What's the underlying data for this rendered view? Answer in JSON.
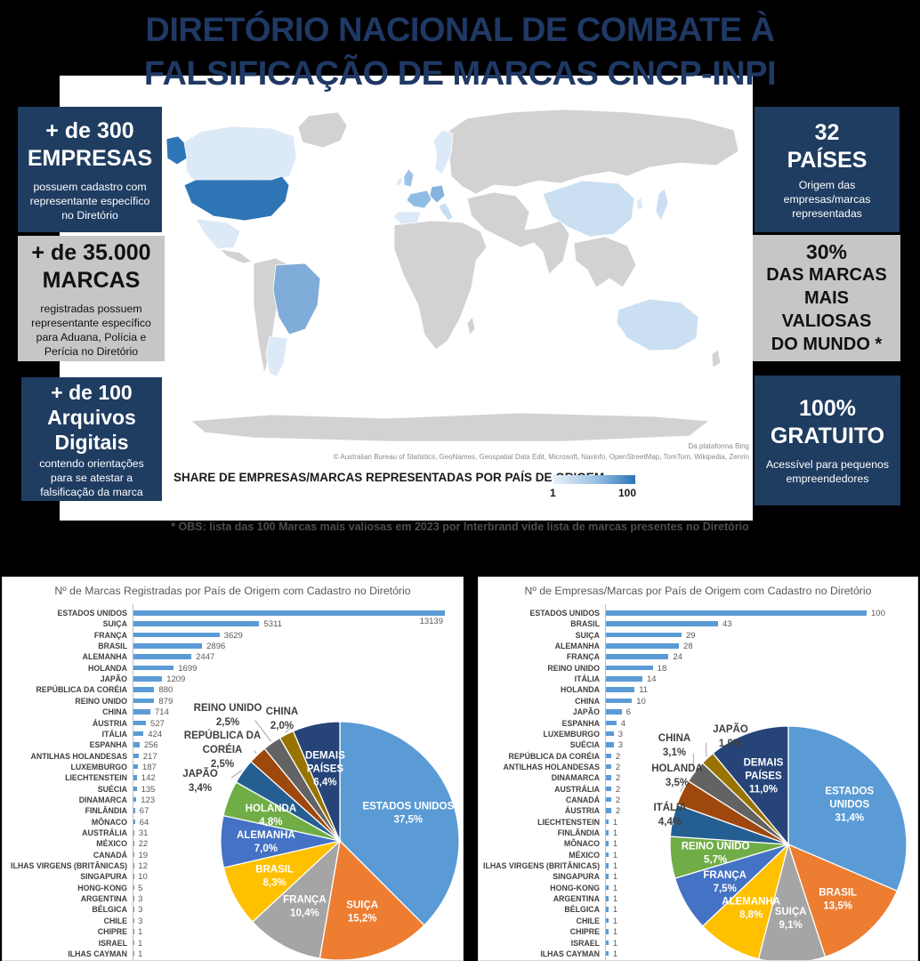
{
  "title": {
    "line1": "DIRETÓRIO NACIONAL DE COMBATE À",
    "line2": "FALSIFICAÇÃO DE MARCAS CNCP-INPI"
  },
  "stat_boxes": {
    "left": [
      {
        "lines": [
          "+ de 300",
          "EMPRESAS"
        ],
        "body": "possuem cadastro com representante específico no Diretório"
      },
      {
        "lines": [
          "+ de 35.000",
          "MARCAS"
        ],
        "body": "registradas possuem representante específico para Aduana, Polícia e Perícia no Diretório"
      },
      {
        "lines": [
          "+ de 100",
          "Arquivos",
          "Digitais"
        ],
        "body": "contendo orientações para se atestar a falsificação da marca"
      }
    ],
    "right": [
      {
        "lines": [
          "32",
          "PAÍSES"
        ],
        "body": "Origem das empresas/marcas representadas"
      },
      {
        "lines": [
          "30%",
          "DAS MARCAS",
          "MAIS VALIOSAS",
          "DO MUNDO *"
        ],
        "body": ""
      },
      {
        "lines": [
          "100%",
          "GRATUITO"
        ],
        "body": "Acessível para pequenos empreendedores"
      }
    ]
  },
  "map": {
    "attribution_line1": "Da plataforma Bing",
    "attribution_line2": "© Australian Bureau of Statistics, GeoNames, Geospatial Data Edit, Microsoft, Navinfo, OpenStreetMap, TomTom, Wikipedia, Zenrin",
    "legend_label": "SHARE DE EMPRESAS/MARCAS REPRESENTADAS POR PAÍS DE ORIGEM",
    "legend_min": "1",
    "legend_max": "100"
  },
  "footnote": "* OBS: lista das 100 Marcas mais valiosas em 2023 por Interbrand vide lista de marcas presentes no Diretório",
  "colors": {
    "navy_box": "#1F3C61",
    "gray_box": "#C6C6C6",
    "title_navy": "#1F3864",
    "bar_blue": "#5B9BD5",
    "map_dark_blue": "#2E75B6",
    "map_medium_blue": "#7FACD8",
    "map_light_blue": "#CBDFF2",
    "map_pale_blue": "#DCE9F6",
    "map_gray_land": "#D2D2D2"
  },
  "chart_data": [
    {
      "type": "bar",
      "title": "Nº de Marcas Registradas por País de Origem com Cadastro no Diretório",
      "bar_color": "#5B9BD5",
      "categories": [
        "ESTADOS UNIDOS",
        "SUIÇA",
        "FRANÇA",
        "BRASIL",
        "ALEMANHA",
        "HOLANDA",
        "JAPÃO",
        "REPÚBLICA DA CORÉIA",
        "REINO UNIDO",
        "CHINA",
        "ÁUSTRIA",
        "ITÁLIA",
        "ESPANHA",
        "ANTILHAS HOLANDESAS",
        "LUXEMBURGO",
        "LIECHTENSTEIN",
        "SUÉCIA",
        "DINAMARCA",
        "FINLÂNDIA",
        "MÔNACO",
        "AUSTRÁLIA",
        "MÉXICO",
        "CANADÁ",
        "ILHAS VIRGENS (BRITÂNICAS)",
        "SINGAPURA",
        "HONG-KONG",
        "ARGENTINA",
        "BÉLGICA",
        "CHILE",
        "CHIPRE",
        "ISRAEL",
        "ILHAS CAYMAN"
      ],
      "values": [
        13139,
        5311,
        3629,
        2896,
        2447,
        1699,
        1209,
        880,
        879,
        714,
        527,
        424,
        256,
        217,
        187,
        142,
        135,
        123,
        67,
        64,
        31,
        22,
        19,
        12,
        10,
        5,
        3,
        3,
        3,
        1,
        1,
        1
      ],
      "pie": {
        "type": "pie",
        "labels": [
          "ESTADOS UNIDOS",
          "SUIÇA",
          "FRANÇA",
          "BRASIL",
          "ALEMANHA",
          "HOLANDA",
          "JAPÃO",
          "REPÚBLICA DA CORÉIA",
          "REINO UNIDO",
          "CHINA",
          "DEMAIS PAÍSES"
        ],
        "values": [
          37.5,
          15.2,
          10.4,
          8.3,
          7.0,
          4.8,
          3.4,
          2.5,
          2.5,
          2.0,
          6.4
        ],
        "display": [
          [
            "ESTADOS UNIDOS",
            "37,5%"
          ],
          [
            "SUIÇA",
            "15,2%"
          ],
          [
            "FRANÇA",
            "10,4%"
          ],
          [
            "BRASIL",
            "8,3%"
          ],
          [
            "ALEMANHA",
            "7,0%"
          ],
          [
            "HOLANDA",
            "4,8%"
          ],
          [
            "JAPÃO",
            "3,4%"
          ],
          [
            "REPÚBLICA DA",
            "CORÉIA",
            "2,5%"
          ],
          [
            "REINO UNIDO",
            "2,5%"
          ],
          [
            "CHINA",
            "2,0%"
          ],
          [
            "DEMAIS",
            "PAÍSES",
            "6,4%"
          ]
        ],
        "placement": [
          "in",
          "in",
          "in",
          "in",
          "in",
          "in",
          "out",
          "out",
          "out",
          "out",
          "in"
        ],
        "colors": [
          "#5B9BD5",
          "#ED7D31",
          "#A5A5A5",
          "#FFC000",
          "#4472C4",
          "#70AD47",
          "#255E91",
          "#9E480E",
          "#636363",
          "#997300",
          "#264478"
        ]
      }
    },
    {
      "type": "bar",
      "title": "Nº de Empresas/Marcas por País de Origem com Cadastro no Diretório",
      "bar_color": "#5B9BD5",
      "categories": [
        "ESTADOS UNIDOS",
        "BRASIL",
        "SUIÇA",
        "ALEMANHA",
        "FRANÇA",
        "REINO UNIDO",
        "ITÁLIA",
        "HOLANDA",
        "CHINA",
        "JAPÃO",
        "ESPANHA",
        "LUXEMBURGO",
        "SUÉCIA",
        "REPÚBLICA DA CORÉIA",
        "ANTILHAS HOLANDESAS",
        "DINAMARCA",
        "AUSTRÁLIA",
        "CANADÁ",
        "ÁUSTRIA",
        "LIECHTENSTEIN",
        "FINLÂNDIA",
        "MÔNACO",
        "MÉXICO",
        "ILHAS VIRGENS (BRITÂNICAS)",
        "SINGAPURA",
        "HONG-KONG",
        "ARGENTINA",
        "BÉLGICA",
        "CHILE",
        "CHIPRE",
        "ISRAEL",
        "ILHAS CAYMAN"
      ],
      "values": [
        100,
        43,
        29,
        28,
        24,
        18,
        14,
        11,
        10,
        6,
        4,
        3,
        3,
        2,
        2,
        2,
        2,
        2,
        2,
        1,
        1,
        1,
        1,
        1,
        1,
        1,
        1,
        1,
        1,
        1,
        1,
        1
      ],
      "pie": {
        "type": "pie",
        "labels": [
          "ESTADOS UNIDOS",
          "BRASIL",
          "SUIÇA",
          "ALEMANHA",
          "FRANÇA",
          "REINO UNIDO",
          "ITÁLIA",
          "HOLANDA",
          "CHINA",
          "JAPÃO",
          "DEMAIS PAÍSES"
        ],
        "values": [
          31.4,
          13.5,
          9.1,
          8.8,
          7.5,
          5.7,
          4.4,
          3.5,
          3.1,
          1.9,
          11.0
        ],
        "display": [
          [
            "ESTADOS",
            "UNIDOS",
            "31,4%"
          ],
          [
            "BRASIL",
            "13,5%"
          ],
          [
            "SUIÇA",
            "9,1%"
          ],
          [
            "ALEMANHA",
            "8,8%"
          ],
          [
            "FRANÇA",
            "7,5%"
          ],
          [
            "REINO UNIDO",
            "5,7%"
          ],
          [
            "ITÁLIA",
            "4,4%"
          ],
          [
            "HOLANDA",
            "3,5%"
          ],
          [
            "CHINA",
            "3,1%"
          ],
          [
            "JAPÃO",
            "1,9%"
          ],
          [
            "DEMAIS",
            "PAÍSES",
            "11,0%"
          ]
        ],
        "placement": [
          "in",
          "in",
          "in",
          "in",
          "in",
          "in",
          "out",
          "out",
          "out",
          "out",
          "in"
        ],
        "colors": [
          "#5B9BD5",
          "#ED7D31",
          "#A5A5A5",
          "#FFC000",
          "#4472C4",
          "#70AD47",
          "#255E91",
          "#9E480E",
          "#636363",
          "#997300",
          "#264478"
        ]
      }
    }
  ]
}
